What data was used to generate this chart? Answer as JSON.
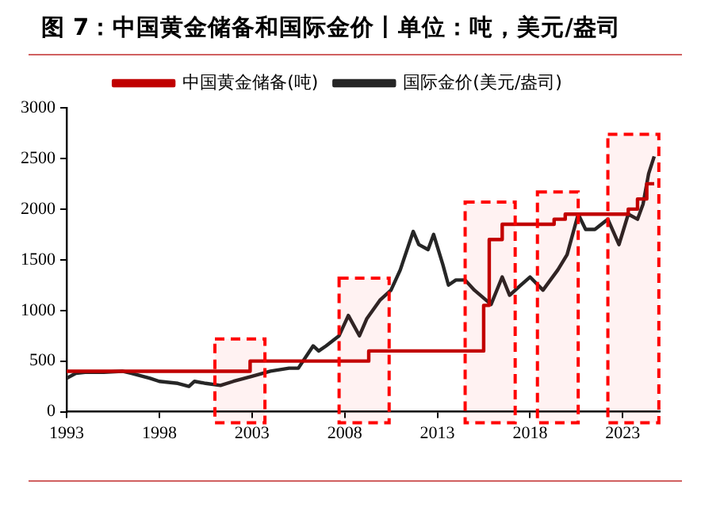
{
  "chart_data": {
    "type": "line",
    "title": "图 7：中国黄金储备和国际金价丨单位：吨，美元/盎司",
    "xlim": [
      1993,
      2025
    ],
    "xticks": [
      1993,
      1998,
      2003,
      2008,
      2013,
      2018,
      2023
    ],
    "ylim": [
      0,
      3000
    ],
    "yticks": [
      0,
      500,
      1000,
      1500,
      2000,
      2500,
      3000
    ],
    "grid": false,
    "legend": "top",
    "marker": "none",
    "line_style": "solid",
    "series": [
      {
        "name": "中国黄金储备(吨)",
        "color": "#c00000",
        "type": "step",
        "x": [
          1993,
          2001.9,
          2002.9,
          2009.3,
          2015.5,
          2015.8,
          2016.5,
          2018.9,
          2019.3,
          2019.9,
          2022.9,
          2023.3,
          2023.8,
          2024.3,
          2024.7
        ],
        "values": [
          400,
          400,
          500,
          600,
          1050,
          1700,
          1850,
          1850,
          1900,
          1950,
          1950,
          2000,
          2100,
          2250,
          2250
        ]
      },
      {
        "name": "国际金价(美元/盎司)",
        "color": "#262626",
        "type": "line",
        "x": [
          1993,
          1993.5,
          1994,
          1995,
          1996,
          1996.5,
          1997.5,
          1998,
          1999,
          1999.6,
          1999.9,
          2000.5,
          2001.3,
          2002,
          2003,
          2004,
          2005,
          2005.5,
          2006.3,
          2006.6,
          2007,
          2007.7,
          2008.2,
          2008.8,
          2009.2,
          2009.9,
          2010.5,
          2011,
          2011.7,
          2012,
          2012.5,
          2012.8,
          2013.3,
          2013.6,
          2014,
          2014.5,
          2015,
          2015.9,
          2016.5,
          2016.9,
          2017.5,
          2018,
          2018.7,
          2019.5,
          2020,
          2020.6,
          2021,
          2021.5,
          2022.2,
          2022.8,
          2023.3,
          2023.8,
          2024.1,
          2024.4,
          2024.7
        ],
        "values": [
          330,
          380,
          390,
          390,
          400,
          380,
          330,
          300,
          280,
          250,
          300,
          280,
          260,
          300,
          350,
          400,
          430,
          430,
          650,
          600,
          650,
          750,
          950,
          750,
          920,
          1100,
          1200,
          1400,
          1780,
          1650,
          1600,
          1750,
          1450,
          1250,
          1300,
          1300,
          1200,
          1060,
          1330,
          1150,
          1250,
          1330,
          1200,
          1400,
          1550,
          1950,
          1800,
          1800,
          1900,
          1650,
          1950,
          1900,
          2050,
          2350,
          2520
        ]
      }
    ],
    "bands": [
      {
        "axis": "x",
        "from": 2001,
        "to": 2003.7,
        "color": "#ff0000"
      },
      {
        "axis": "x",
        "from": 2007.7,
        "to": 2010.4,
        "color": "#ff0000"
      },
      {
        "axis": "x",
        "from": 2014.5,
        "to": 2017.2,
        "color": "#ff0000"
      },
      {
        "axis": "x",
        "from": 2018.4,
        "to": 2020.6,
        "color": "#ff0000"
      },
      {
        "axis": "x",
        "from": 2022.2,
        "to": 2024.95,
        "color": "#ff0000"
      }
    ]
  }
}
